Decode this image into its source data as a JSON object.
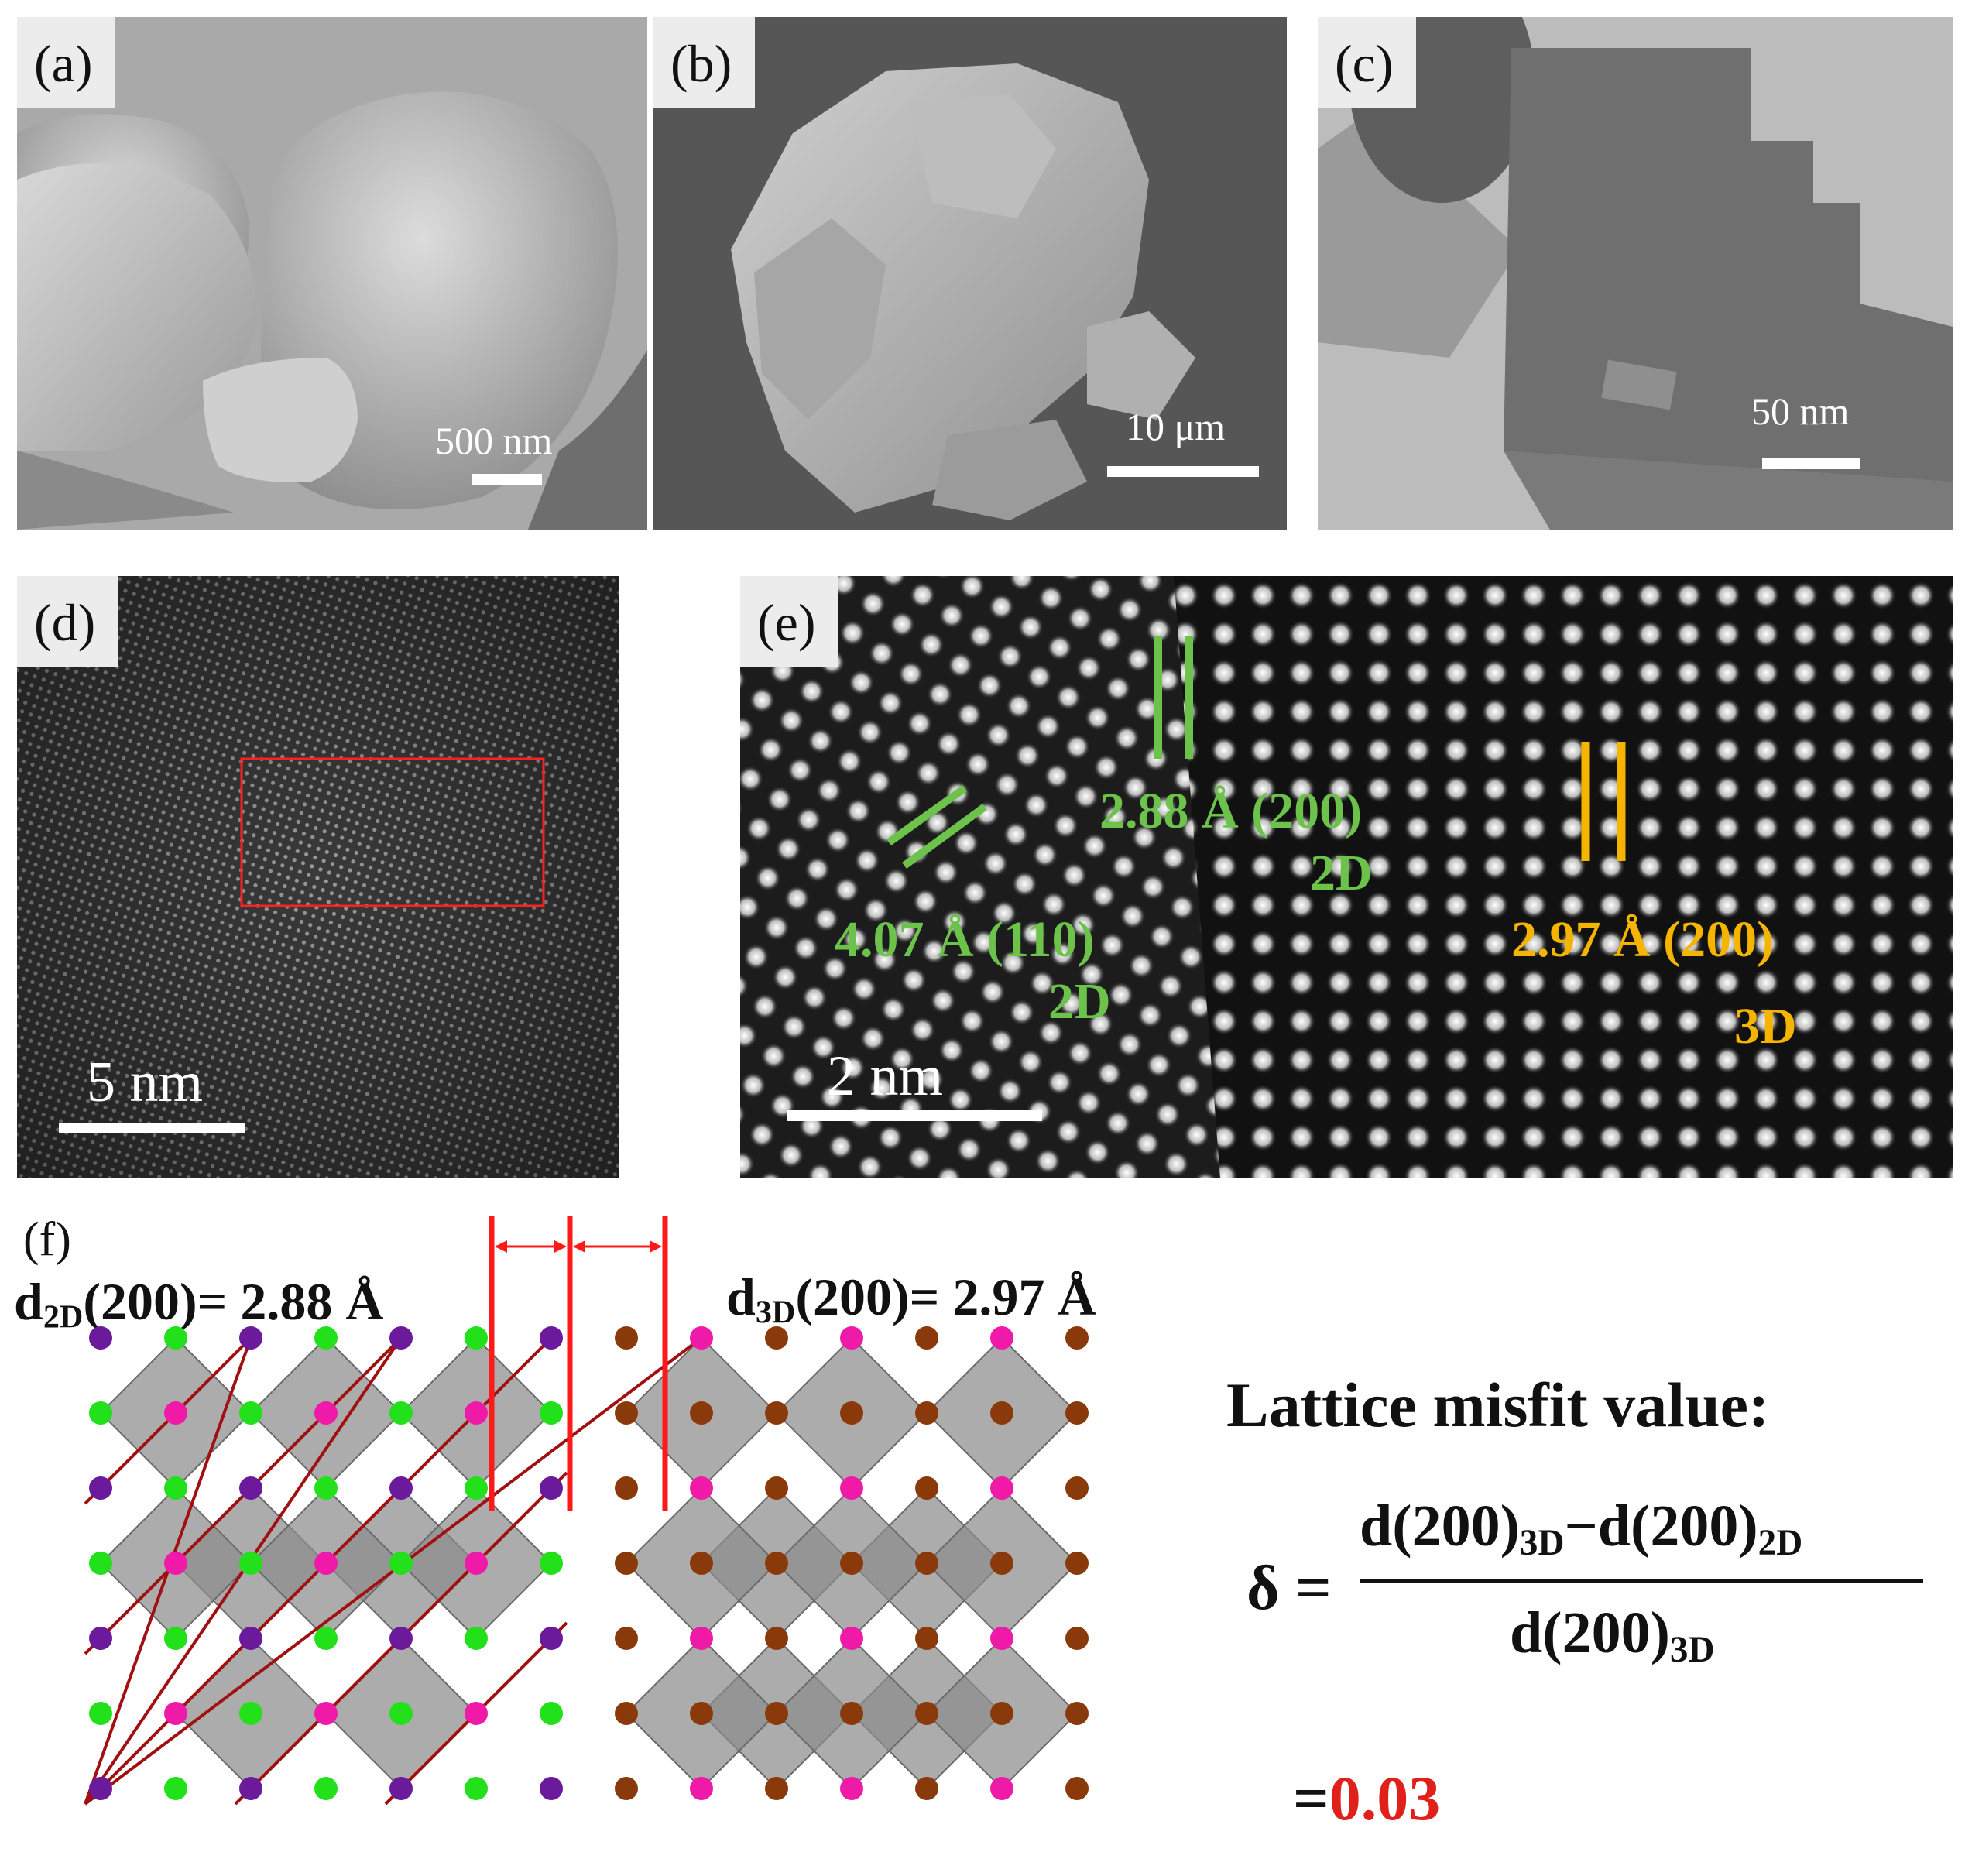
{
  "panels": {
    "a": {
      "tag": "(a)",
      "scale": "500 nm"
    },
    "b": {
      "tag": "(b)",
      "scale": "10 μm"
    },
    "c": {
      "tag": "(c)",
      "scale": "50 nm"
    },
    "d": {
      "tag": "(d)",
      "scale": "5 nm"
    },
    "e": {
      "tag": "(e)",
      "scale": "2 nm",
      "label_110": "4.07 Å (110)",
      "label_110_phase": "2D",
      "label_200_2d": "2.88 Å (200)",
      "label_200_2d_phase": "2D",
      "label_200_3d": "2.97 Å (200)",
      "label_200_3d_phase": "3D"
    },
    "f": {
      "tag": "(f)",
      "d2d_prefix": "d",
      "d2d_sub": "2D",
      "d2d_value": "(200)= 2.88 Å",
      "d3d_prefix": "d",
      "d3d_sub": "3D",
      "d3d_value": "(200)= 2.97 Å",
      "misfit_title": "Lattice misfit value:",
      "delta": "δ =",
      "numerator_a": "d(200)",
      "numerator_a_sub": "3D",
      "numerator_minus": "−",
      "numerator_b": "d(200)",
      "numerator_b_sub": "2D",
      "denominator": "d(200)",
      "denominator_sub": "3D",
      "result_eq": "=",
      "result_value": "0.03"
    }
  },
  "colors": {
    "green_label": "#6cc24a",
    "orange_label": "#f5b400",
    "red_value": "#e0201b",
    "atom_green": "#22e01a",
    "atom_purple": "#6a1a9a",
    "atom_pink": "#f01aa8",
    "atom_brown": "#8a3a0a",
    "octahedron": "#8c8c8c"
  }
}
